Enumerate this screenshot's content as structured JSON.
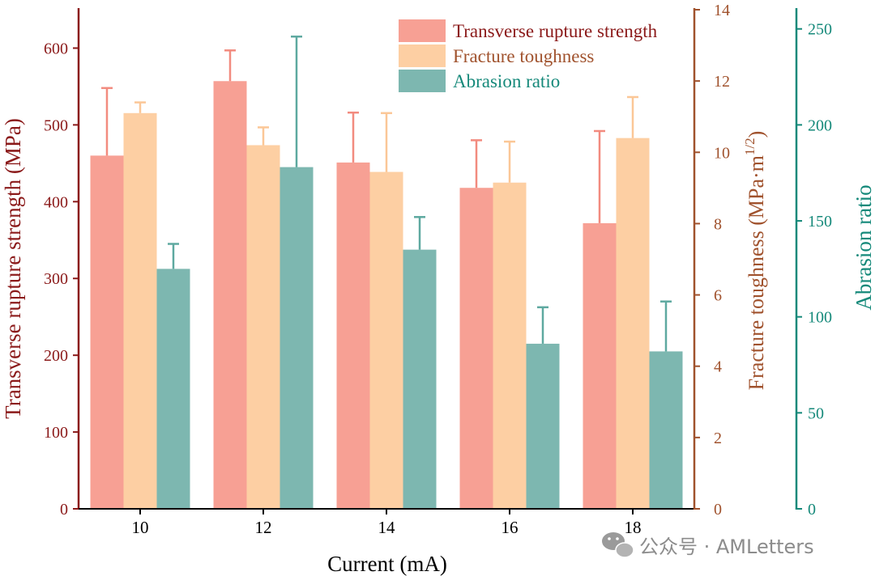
{
  "colors": {
    "left_axis": "#8b1a1a",
    "right_axis": "#a0522d",
    "far_right_axis": "#15897a",
    "trs": "#f7a094",
    "ft": "#fdcfa3",
    "ar": "#7db7b0",
    "trs_err": "#f28b7f",
    "ft_err": "#fbc797",
    "ar_err": "#5ea9a0"
  },
  "watermark": {
    "icon": "wechat-icon",
    "text": "公众号 · AMLetters"
  },
  "chart_data": {
    "type": "bar",
    "xlabel": "Current (mA)",
    "categories": [
      "10",
      "12",
      "14",
      "16",
      "18"
    ],
    "axes": {
      "left": {
        "label": "Transverse rupture strength (MPa)",
        "range": [
          0,
          650
        ],
        "ticks": [
          "0",
          "100",
          "200",
          "300",
          "400",
          "500",
          "600"
        ]
      },
      "right": {
        "label_main": "Fracture toughness (MPa·m",
        "label_sup": "1/2",
        "label_end": ")",
        "range": [
          0,
          14
        ],
        "ticks": [
          "0",
          "2",
          "4",
          "6",
          "8",
          "10",
          "12",
          "14"
        ]
      },
      "far_right": {
        "label": "Abrasion ratio",
        "range": [
          0,
          260
        ],
        "ticks": [
          "0",
          "50",
          "100",
          "150",
          "200",
          "250"
        ]
      }
    },
    "legend_position": "top-right",
    "grid": false,
    "series": [
      {
        "name": "Transverse rupture strength",
        "axis": "left",
        "color_key": "trs",
        "values": [
          460,
          557,
          451,
          418,
          372
        ],
        "errors": [
          88,
          40,
          65,
          62,
          120
        ]
      },
      {
        "name": "Fracture toughness",
        "axis": "right",
        "color_key": "ft",
        "values": [
          11.1,
          10.2,
          9.45,
          9.15,
          10.4
        ],
        "errors": [
          0.3,
          0.5,
          1.65,
          1.15,
          1.15
        ]
      },
      {
        "name": "Abrasion ratio",
        "axis": "far_right",
        "color_key": "ar",
        "values": [
          125,
          178,
          135,
          86,
          82
        ],
        "errors": [
          13,
          68,
          17,
          19,
          26
        ]
      }
    ]
  }
}
